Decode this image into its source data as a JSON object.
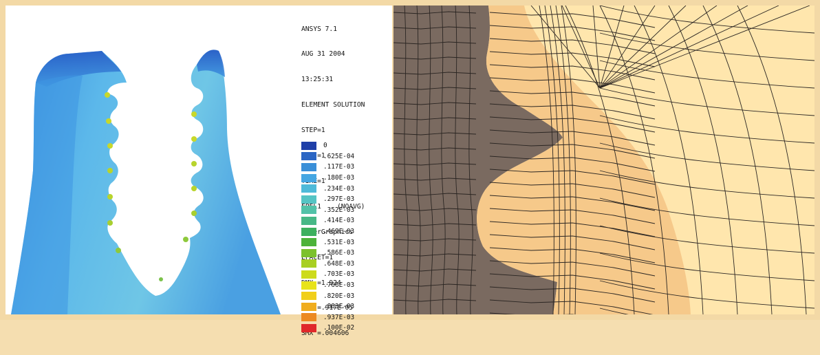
{
  "ansys_info": {
    "lines": [
      "ANSYS 7.1",
      "AUG 31 2004",
      "13:25:31",
      "ELEMENT SOLUTION",
      "STEP=1",
      "SUB =1",
      "TIME=1",
      "EPEL1    (NOAVG)",
      "PowerGraphics",
      "EFACET=1",
      "DMX =1.924",
      "SMN =.917E-05",
      "SMX =.004606"
    ]
  },
  "legend": {
    "items": [
      {
        "label": "0",
        "color": "#1f3fa8"
      },
      {
        "label": ".625E-04",
        "color": "#2c66c4"
      },
      {
        "label": ".117E-03",
        "color": "#3a8fd8"
      },
      {
        "label": ".180E-03",
        "color": "#45a6e2"
      },
      {
        "label": ".234E-03",
        "color": "#4fbad9"
      },
      {
        "label": ".297E-03",
        "color": "#55c4c4"
      },
      {
        "label": ".352E-03",
        "color": "#52c2a8"
      },
      {
        "label": ".414E-03",
        "color": "#47b886"
      },
      {
        "label": ".469E-03",
        "color": "#3db05e"
      },
      {
        "label": ".531E-03",
        "color": "#4db23a"
      },
      {
        "label": ".586E-03",
        "color": "#7cc12c"
      },
      {
        "label": ".648E-03",
        "color": "#a8cf22"
      },
      {
        "label": ".703E-03",
        "color": "#cddb1c"
      },
      {
        "label": ".766E-03",
        "color": "#e8e31a"
      },
      {
        "label": ".820E-03",
        "color": "#f1cf1a"
      },
      {
        "label": ".883E-03",
        "color": "#f0ad1e"
      },
      {
        "label": ".937E-03",
        "color": "#ec8a22"
      },
      {
        "label": ".100E-02",
        "color": "#e0282a"
      }
    ]
  },
  "colors": {
    "fea_body": "#4fa6e4",
    "fea_edge": "#2d6fcf",
    "mesh_outer": "#ffe6ad",
    "mesh_inner": "#f6c98a",
    "mesh_dark": "#7a6a60"
  }
}
